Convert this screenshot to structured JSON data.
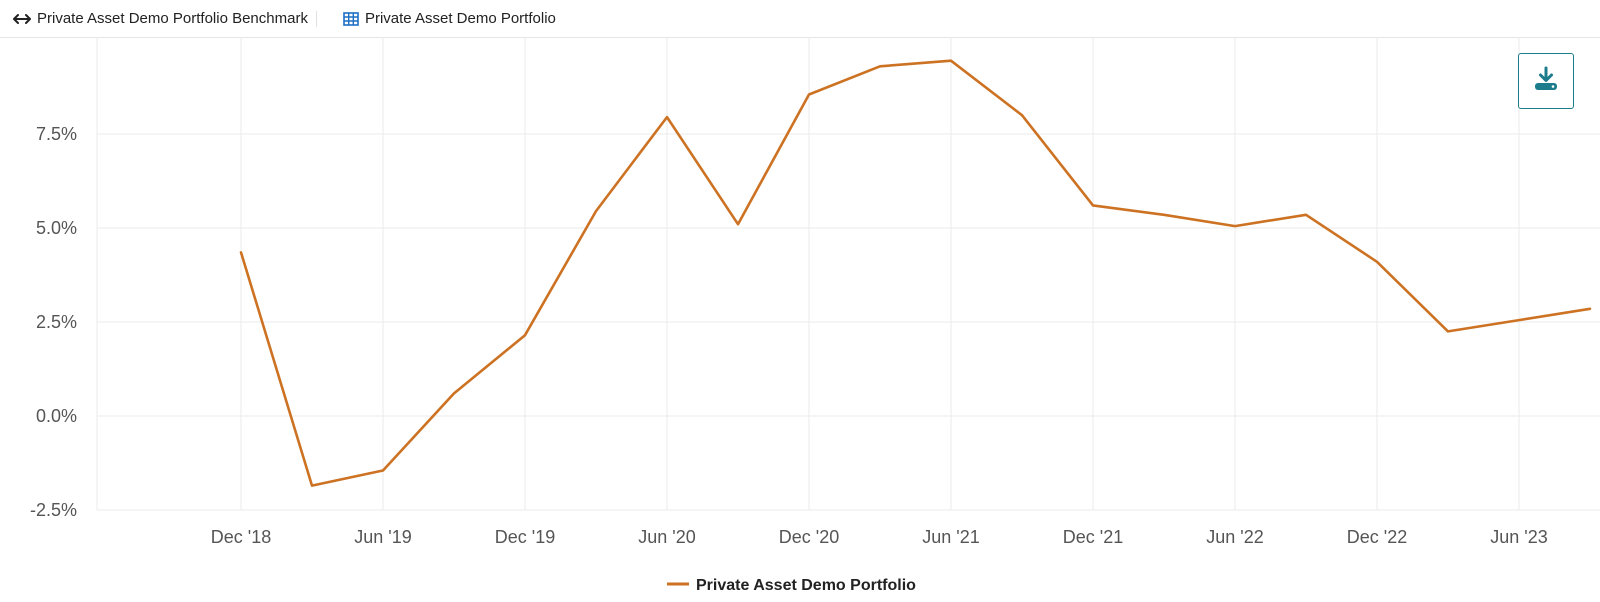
{
  "toolbar": {
    "benchmark_label": "Private Asset Demo Portfolio Benchmark",
    "benchmark_icon": "left-right-arrow-icon",
    "portfolio_label": "Private Asset Demo Portfolio",
    "portfolio_icon": "table-grid-icon"
  },
  "download_button": {
    "icon": "download-icon"
  },
  "colors": {
    "series": "#CC7222",
    "accent": "#1C7C8C",
    "grid": "#EBEBEB"
  },
  "chart_data": {
    "type": "line",
    "title": "",
    "xlabel": "",
    "ylabel": "",
    "grid": true,
    "legend_position": "bottom-center",
    "x_ticks": [
      "Dec '18",
      "Jun '19",
      "Dec '19",
      "Jun '20",
      "Dec '20",
      "Jun '21",
      "Dec '21",
      "Jun '22",
      "Dec '22",
      "Jun '23"
    ],
    "y_ticks": [
      "7.5%",
      "5.0%",
      "2.5%",
      "0.0%",
      "-2.5%"
    ],
    "ylim": [
      -2.5,
      10
    ],
    "series": [
      {
        "name": "Private Asset Demo Portfolio",
        "x": [
          "Dec '18",
          "Mar '19",
          "Jun '19",
          "Sep '19",
          "Dec '19",
          "Mar '20",
          "Jun '20",
          "Sep '20",
          "Dec '20",
          "Mar '21",
          "Jun '21",
          "Sep '21",
          "Dec '21",
          "Mar '22",
          "Jun '22",
          "Sep '22",
          "Dec '22",
          "Mar '23",
          "Jun '23",
          "Sep '23"
        ],
        "values": [
          4.35,
          -1.85,
          -1.45,
          0.6,
          2.15,
          5.45,
          7.95,
          5.1,
          8.55,
          9.3,
          9.45,
          8.0,
          5.6,
          5.35,
          5.05,
          5.35,
          4.1,
          2.25,
          2.55,
          2.85
        ]
      }
    ]
  }
}
